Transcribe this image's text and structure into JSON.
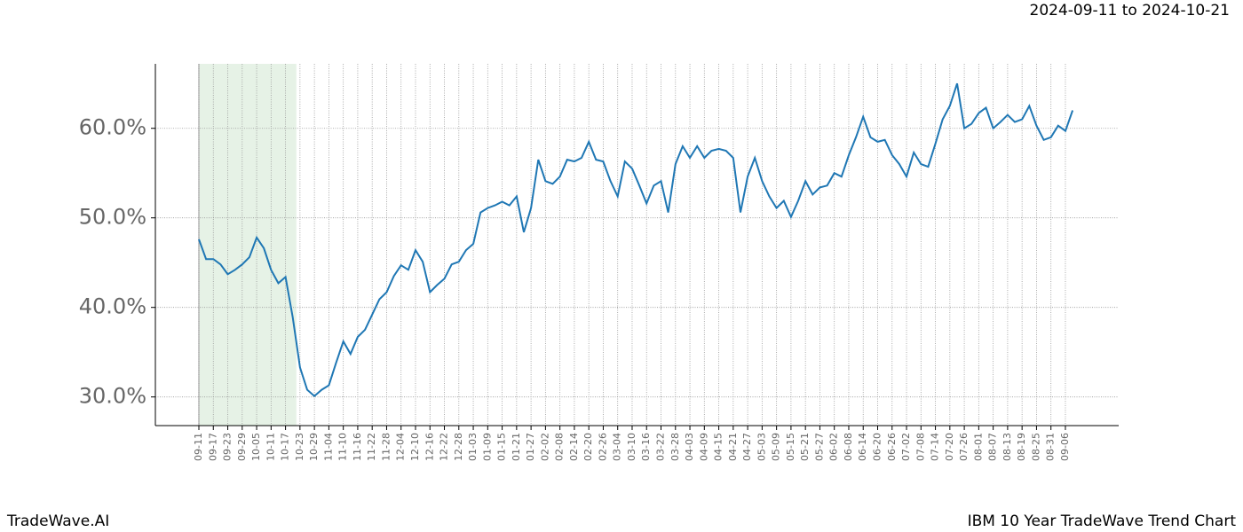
{
  "chart_data": {
    "type": "line",
    "title": "2024-09-11 to 2024-10-21",
    "footer_left": "TradeWave.AI",
    "footer_right": "IBM 10 Year TradeWave Trend Chart",
    "highlight": [
      0,
      13.5
    ],
    "highlight_color": "#e6f2e6",
    "grid": true,
    "categories": [
      "09-11",
      null,
      "09-17",
      null,
      "09-23",
      null,
      "09-29",
      null,
      "10-05",
      null,
      "10-11",
      null,
      "10-17",
      null,
      "10-23",
      null,
      "10-29",
      null,
      "11-04",
      null,
      "11-10",
      null,
      "11-16",
      null,
      "11-22",
      null,
      "11-28",
      null,
      "12-04",
      null,
      "12-10",
      null,
      "12-16",
      null,
      "12-22",
      null,
      "12-28",
      null,
      "01-03",
      null,
      "01-09",
      null,
      "01-15",
      null,
      "01-21",
      null,
      "01-27",
      null,
      "02-02",
      null,
      "02-08",
      null,
      "02-14",
      null,
      "02-20",
      null,
      "02-26",
      null,
      "03-04",
      null,
      "03-10",
      null,
      "03-16",
      null,
      "03-22",
      null,
      "03-28",
      null,
      "04-03",
      null,
      "04-09",
      null,
      "04-15",
      null,
      "04-21",
      null,
      "04-27",
      null,
      "05-03",
      null,
      "05-09",
      null,
      "05-15",
      null,
      "05-21",
      null,
      "05-27",
      null,
      "06-02",
      null,
      "06-08",
      null,
      "06-14",
      null,
      "06-20",
      null,
      "06-26",
      null,
      "07-02",
      null,
      "07-08",
      null,
      "07-14",
      null,
      "07-20",
      null,
      "07-26",
      null,
      "08-01",
      null,
      "08-07",
      null,
      "08-13",
      null,
      "08-19",
      null,
      "08-25",
      null,
      "08-31",
      null,
      "09-06",
      null
    ],
    "series": [
      {
        "name": "IBM",
        "color": "#1f77b4",
        "values": [
          47.6,
          45.4,
          45.4,
          44.8,
          43.7,
          44.2,
          44.8,
          45.6,
          47.8,
          46.6,
          44.2,
          42.7,
          43.4,
          38.9,
          33.3,
          30.8,
          30.1,
          30.8,
          31.3,
          33.8,
          36.2,
          34.8,
          36.7,
          37.5,
          39.2,
          40.9,
          41.7,
          43.5,
          44.7,
          44.2,
          46.4,
          45.1,
          41.7,
          42.5,
          43.2,
          44.8,
          45.1,
          46.4,
          47.1,
          50.6,
          51.1,
          51.4,
          51.8,
          51.4,
          52.4,
          48.4,
          51.1,
          56.5,
          54.1,
          53.8,
          54.6,
          56.5,
          56.3,
          56.7,
          58.5,
          56.5,
          56.3,
          54.1,
          52.4,
          56.3,
          55.5,
          53.6,
          51.6,
          53.6,
          54.1,
          50.6,
          56.0,
          58.0,
          56.7,
          58.0,
          56.7,
          57.5,
          57.7,
          57.5,
          56.7,
          50.6,
          54.6,
          56.7,
          54.1,
          52.4,
          51.1,
          51.9,
          50.1,
          51.9,
          54.1,
          52.6,
          53.4,
          53.6,
          55.0,
          54.6,
          57.0,
          59.0,
          61.3,
          59.0,
          58.5,
          58.7,
          57.0,
          56.0,
          54.6,
          57.3,
          56.0,
          55.7,
          58.3,
          61.0,
          62.5,
          65.0,
          60.0,
          60.5,
          61.7,
          62.3,
          60.0,
          60.7,
          61.5,
          60.7,
          61.0,
          62.5,
          60.3,
          58.7,
          59.0,
          60.3,
          59.7,
          62.0
        ]
      }
    ],
    "ylim": [
      26.8,
      67.2
    ],
    "yticks": [
      {
        "value": 30,
        "label": "30.0%"
      },
      {
        "value": 40,
        "label": "40.0%"
      },
      {
        "value": 50,
        "label": "50.0%"
      },
      {
        "value": 60,
        "label": "60.0%"
      }
    ]
  }
}
